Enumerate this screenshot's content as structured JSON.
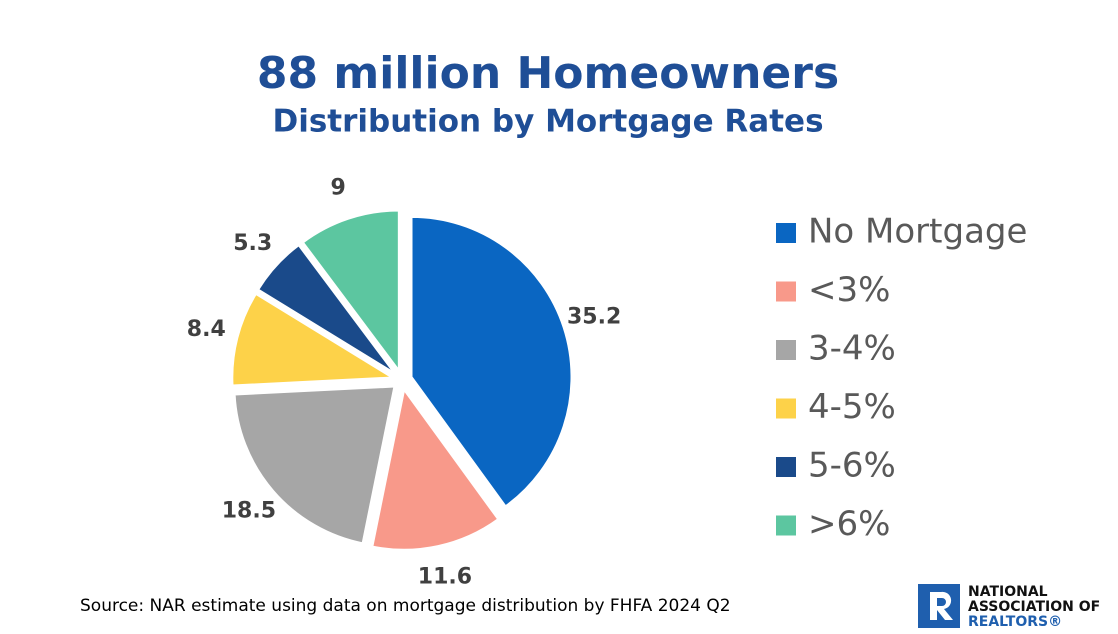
{
  "chart_data": {
    "type": "pie",
    "title": "88 million Homeowners",
    "subtitle": "Distribution by Mortgage Rates",
    "categories": [
      "No Mortgage",
      "<3%",
      "3-4%",
      "4-5%",
      "5-6%",
      ">6%"
    ],
    "values": [
      35.2,
      11.6,
      18.5,
      8.4,
      5.3,
      9
    ],
    "colors": [
      "#0a66c2",
      "#f8998a",
      "#a6a6a6",
      "#fdd249",
      "#1a4a8a",
      "#5cc6a0"
    ],
    "legend": "right",
    "source": "Source: NAR estimate using data on mortgage distribution by FHFA 2024 Q2"
  },
  "logo": {
    "lines": [
      "NATIONAL",
      "ASSOCIATION OF"
    ],
    "brand": "REALTORS®"
  }
}
